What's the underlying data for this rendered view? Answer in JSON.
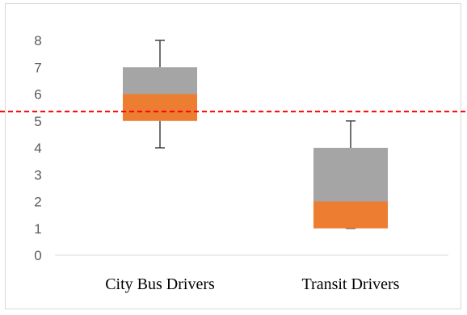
{
  "chart_data": {
    "type": "box",
    "title": "",
    "xlabel": "",
    "ylabel": "",
    "ylim": [
      0,
      8
    ],
    "yticks": [
      0,
      1,
      2,
      3,
      4,
      5,
      6,
      7,
      8
    ],
    "grid": false,
    "categories": [
      "City Bus Drivers",
      "Transit Drivers"
    ],
    "boxes": [
      {
        "category": "City Bus Drivers",
        "min": 4,
        "q1": 5,
        "median": 6,
        "q3": 7,
        "max": 8
      },
      {
        "category": "Transit Drivers",
        "min": 1,
        "q1": 1,
        "median": 2,
        "q3": 4,
        "max": 5
      }
    ],
    "reference_line": {
      "y": 5.35,
      "style": "dashed",
      "color": "#ff0000"
    },
    "colors": {
      "lower_box": "#ed7d31",
      "upper_box": "#a5a5a5",
      "whisker": "#404040",
      "axis": "#d9d9d9"
    }
  }
}
